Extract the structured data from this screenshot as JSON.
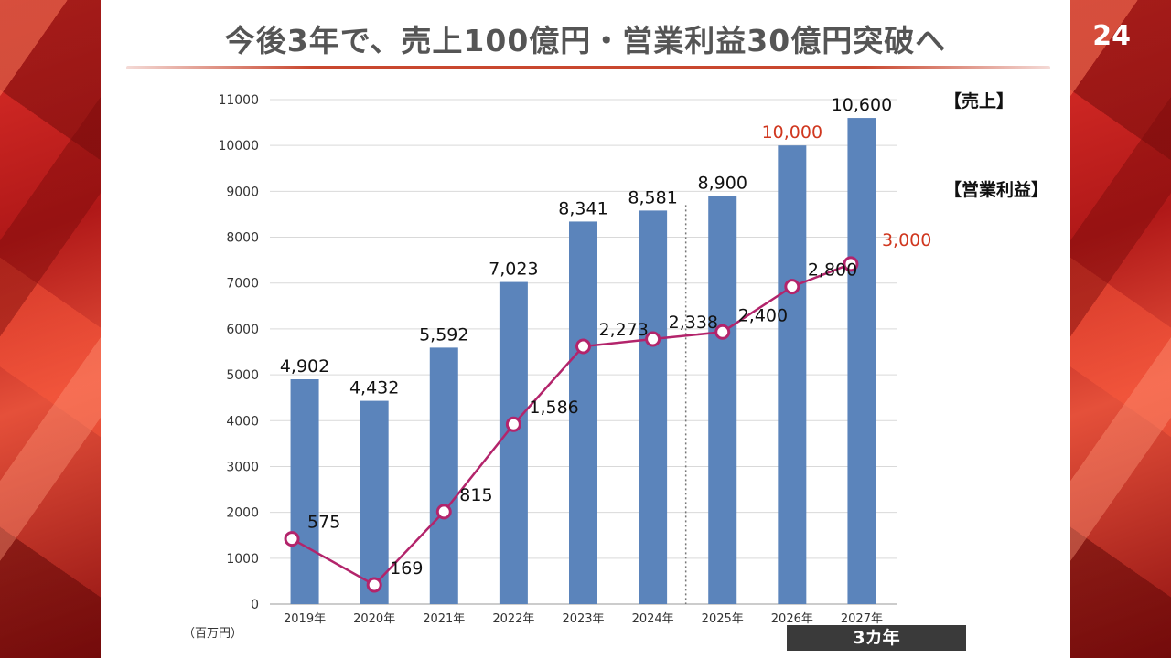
{
  "slide": {
    "title": "今後3年で、売上100億円・営業利益30億円突破へ",
    "page_number": "24",
    "unit_label": "（百万円）",
    "period_tag": "3カ年"
  },
  "chart_data": {
    "type": "bar",
    "categories": [
      "2019年",
      "2020年",
      "2021年",
      "2022年",
      "2023年",
      "2024年",
      "2025年",
      "2026年",
      "2027年"
    ],
    "ylim": [
      0,
      11000
    ],
    "yticks": [
      0,
      1000,
      2000,
      3000,
      4000,
      5000,
      6000,
      7000,
      8000,
      9000,
      10000,
      11000
    ],
    "grid": true,
    "bar_color": "#5b84bb",
    "line_color": "#b3246b",
    "highlight_color": "#d0371f",
    "series": [
      {
        "name": "【売上】",
        "type": "bar",
        "values": [
          4902,
          4432,
          5592,
          7023,
          8341,
          8581,
          8900,
          10000,
          10600
        ],
        "labels": [
          "4,902",
          "4,432",
          "5,592",
          "7,023",
          "8,341",
          "8,581",
          "8,900",
          "10,000",
          "10,600"
        ],
        "highlight_index": 7
      },
      {
        "name": "【営業利益】",
        "type": "line",
        "values": [
          575,
          169,
          815,
          1586,
          2273,
          2338,
          2400,
          2800,
          3000
        ],
        "labels": [
          "575",
          "169",
          "815",
          "1,586",
          "2,273",
          "2,338",
          "2,400",
          "2,800",
          "3,000"
        ],
        "highlight_index": 8
      }
    ],
    "forecast_divider_after": "2024年"
  }
}
